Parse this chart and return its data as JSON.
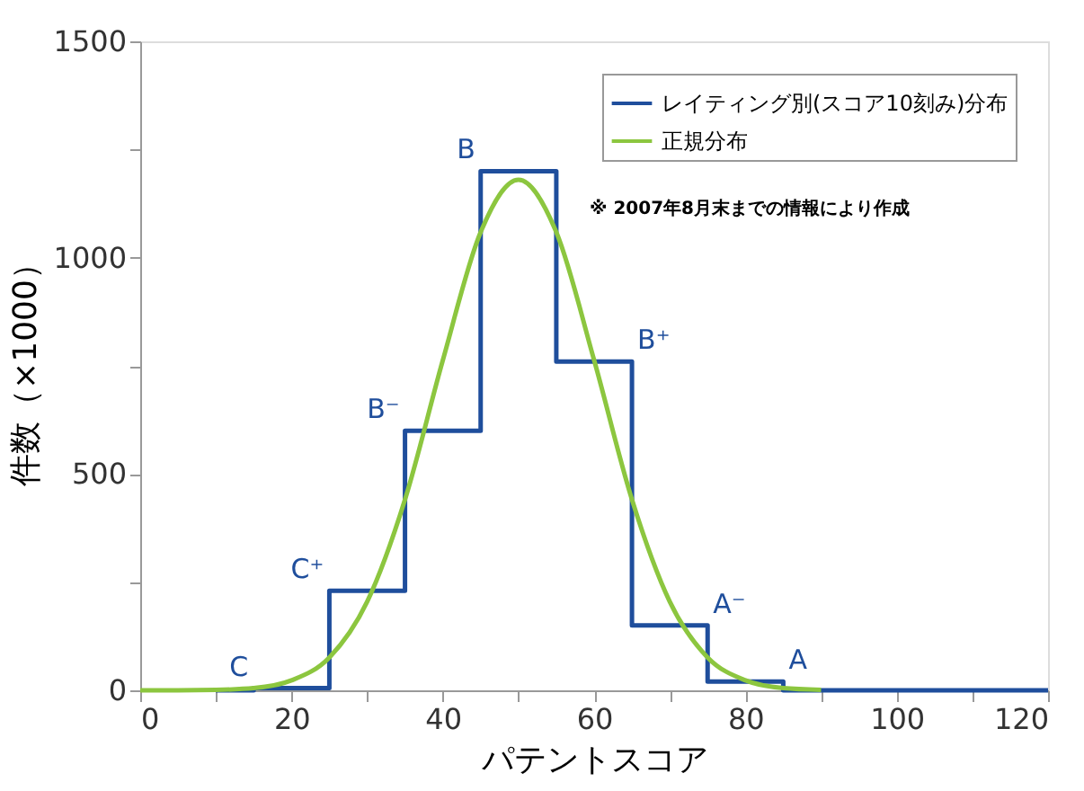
{
  "chart_data": {
    "type": "line",
    "xlabel": "パテントスコア",
    "ylabel": "件数（×1000）",
    "xlim": [
      0,
      120
    ],
    "xticks": [
      0,
      {
        "value": 10,
        "label": null
      },
      20,
      {
        "value": 30,
        "label": null
      },
      40,
      {
        "value": 50,
        "label": null
      },
      60,
      {
        "value": 70,
        "label": null
      },
      80,
      {
        "value": 90,
        "label": null
      },
      100,
      {
        "value": 110,
        "label": null
      },
      120
    ],
    "ylim": [
      0,
      1500
    ],
    "yticks": [
      0,
      {
        "value": 250,
        "label": null
      },
      500,
      {
        "value": 750,
        "label": null
      },
      1000,
      {
        "value": 1250,
        "label": null
      },
      1500
    ],
    "line_style": "solid",
    "grid": false,
    "legend": "top right",
    "series": [
      {
        "name": "レイティング別(スコア10刻み)分布",
        "type": "step",
        "color": "#1f4e9c",
        "x": [
          10,
          15,
          25,
          35,
          45,
          55,
          65,
          75,
          85,
          120
        ],
        "values": [
          0,
          5,
          230,
          600,
          1200,
          760,
          150,
          20,
          0,
          0
        ]
      },
      {
        "name": "正規分布",
        "type": "line",
        "color": "#8cc63f",
        "x": [
          0,
          5,
          10,
          15,
          20,
          25,
          30,
          35,
          40,
          45,
          50,
          55,
          60,
          65,
          70,
          75,
          80,
          85,
          90
        ],
        "values": [
          0,
          0,
          1,
          5,
          23,
          76,
          205,
          441,
          763,
          1059,
          1180,
          1059,
          763,
          441,
          205,
          76,
          23,
          5,
          1
        ]
      }
    ],
    "annotations": [
      {
        "text": "C",
        "x": 15,
        "y": 5
      },
      {
        "text": "C⁺",
        "x": 25,
        "y": 230
      },
      {
        "text": "B⁻",
        "x": 35,
        "y": 600
      },
      {
        "text": "B",
        "x": 45,
        "y": 1200
      },
      {
        "text": "B⁺",
        "x": 65,
        "y": 760
      },
      {
        "text": "A⁻",
        "x": 75,
        "y": 150
      },
      {
        "text": "A",
        "x": 85,
        "y": 20
      },
      "※ 2007年8月末までの情報により作成"
    ]
  }
}
